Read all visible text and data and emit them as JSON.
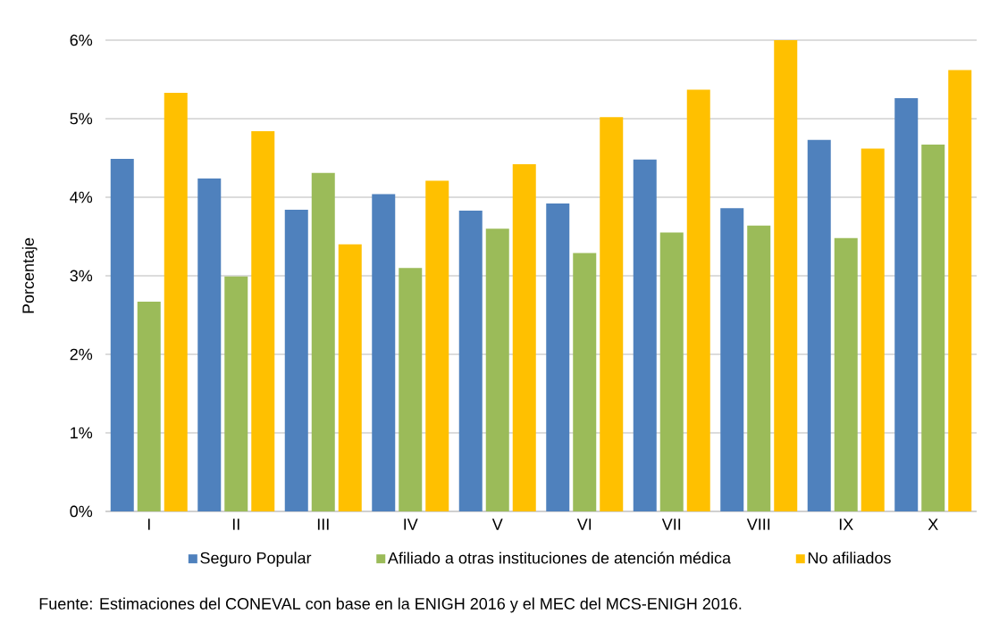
{
  "chart_data": {
    "type": "bar",
    "ylabel": "Porcentaje",
    "categories": [
      "I",
      "II",
      "III",
      "IV",
      "V",
      "VI",
      "VII",
      "VIII",
      "IX",
      "X"
    ],
    "series": [
      {
        "name": "Seguro Popular",
        "color": "#4f81bd",
        "values": [
          4.49,
          4.24,
          3.84,
          4.04,
          3.83,
          3.92,
          4.48,
          3.86,
          4.73,
          5.26
        ]
      },
      {
        "name": "Afiliado a otras instituciones de atención médica",
        "color": "#9bbb59",
        "values": [
          2.67,
          2.99,
          4.31,
          3.1,
          3.6,
          3.29,
          3.55,
          3.64,
          3.48,
          4.67
        ]
      },
      {
        "name": "No afiliados",
        "color": "#ffc000",
        "values": [
          5.33,
          4.84,
          3.4,
          4.21,
          4.42,
          5.02,
          5.37,
          6.0,
          4.62,
          5.62
        ]
      }
    ],
    "ylim": [
      0,
      6
    ],
    "yticks": [
      {
        "value": 0,
        "label": "0%"
      },
      {
        "value": 1,
        "label": "1%"
      },
      {
        "value": 2,
        "label": "2%"
      },
      {
        "value": 3,
        "label": "3%"
      },
      {
        "value": 4,
        "label": "4%"
      },
      {
        "value": 5,
        "label": "5%"
      },
      {
        "value": 6,
        "label": "6%"
      }
    ],
    "grid": "y",
    "legend": "bottom",
    "annotations": [
      "Fuente: Estimaciones del CONEVAL con base en la ENIGH 2016 y el MEC del MCS-ENIGH 2016."
    ]
  }
}
